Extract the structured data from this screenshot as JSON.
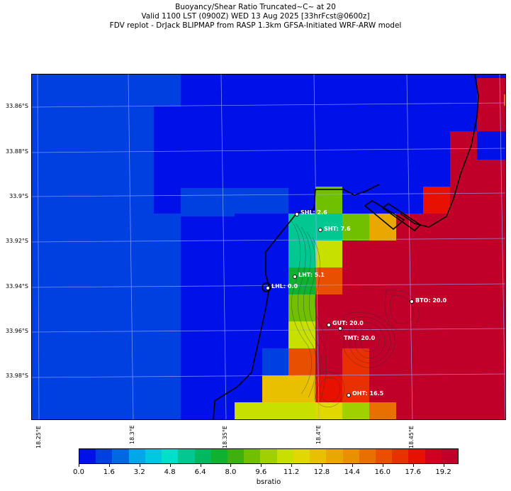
{
  "title": {
    "line1": "Buoyancy/Shear Ratio Truncated~C~    at 20",
    "line2": "Valid 1100 LST (0900Z) WED 13 Aug 2025 [33hrFcst@0600z]",
    "line3": "FDV replot - DrJack BLIPMAP from RASP 1.3km GFSA-Initiated WRF-ARW model"
  },
  "axes": {
    "lat_labels": [
      "33.86°S",
      "33.88°S",
      "33.9°S",
      "33.92°S",
      "33.94°S",
      "33.96°S",
      "33.98°S"
    ],
    "lon_labels": [
      "18.25°E",
      "18.3°E",
      "18.35°E",
      "18.4°E",
      "18.45°E"
    ]
  },
  "colorbar": {
    "label": "bsratio",
    "tick_labels": [
      "0.0",
      "1.6",
      "3.2",
      "4.8",
      "6.4",
      "8.0",
      "9.6",
      "11.2",
      "12.8",
      "14.4",
      "16.0",
      "17.6",
      "19.2"
    ],
    "range": [
      0,
      20
    ],
    "colors": [
      "#0010e8",
      "#0040e0",
      "#0068e0",
      "#00a8e8",
      "#00c8e0",
      "#00e0c8",
      "#00c890",
      "#00b860",
      "#10b030",
      "#40b010",
      "#70c000",
      "#a0d000",
      "#c8e000",
      "#e0d800",
      "#e8c000",
      "#e8a800",
      "#e89000",
      "#e87000",
      "#e85000",
      "#e83000",
      "#e81000",
      "#d00020",
      "#c00028"
    ]
  },
  "sites": [
    {
      "name": "SHL",
      "label": "SHL: 2.6",
      "value": 2.6
    },
    {
      "name": "SHT",
      "label": "SHT: 7.6",
      "value": 7.6
    },
    {
      "name": "LHT",
      "label": "LHT: 5.1",
      "value": 5.1
    },
    {
      "name": "LHL",
      "label": "LHL: 0.0",
      "value": 0.0
    },
    {
      "name": "BTO",
      "label": "BTO: 20.0",
      "value": 20.0
    },
    {
      "name": "GUT",
      "label": "GUT: 20.0",
      "value": 20.0
    },
    {
      "name": "TMT",
      "label": "TMT: 20.0",
      "value": 20.0
    },
    {
      "name": "OHT",
      "label": "OHT: 16.5",
      "value": 16.5
    }
  ]
}
